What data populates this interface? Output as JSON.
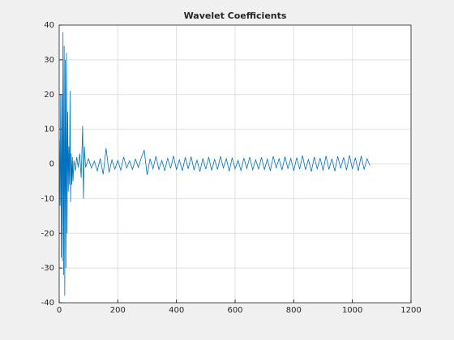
{
  "chart_data": {
    "type": "line",
    "title": "Wavelet Coefficients",
    "x": [
      1,
      3,
      5,
      7,
      9,
      11,
      13,
      15,
      17,
      19,
      21,
      23,
      25,
      27,
      29,
      31,
      33,
      35,
      37,
      39,
      41,
      43,
      45,
      47,
      50,
      55,
      60,
      65,
      70,
      75,
      80,
      83,
      86,
      90,
      100,
      110,
      120,
      130,
      140,
      150,
      160,
      170,
      180,
      190,
      200,
      210,
      220,
      230,
      240,
      250,
      260,
      270,
      280,
      290,
      300,
      310,
      320,
      330,
      340,
      350,
      360,
      370,
      380,
      390,
      400,
      410,
      420,
      430,
      440,
      450,
      460,
      470,
      480,
      490,
      500,
      510,
      520,
      530,
      540,
      550,
      560,
      570,
      580,
      590,
      600,
      610,
      620,
      630,
      640,
      650,
      660,
      670,
      680,
      690,
      700,
      710,
      720,
      730,
      740,
      750,
      760,
      770,
      780,
      790,
      800,
      810,
      820,
      830,
      840,
      850,
      860,
      870,
      880,
      890,
      900,
      910,
      920,
      930,
      940,
      950,
      960,
      970,
      980,
      990,
      1000,
      1010,
      1020,
      1030,
      1040,
      1050,
      1060
    ],
    "series": [
      {
        "color": "#0072bd",
        "values": [
          7,
          -12,
          20,
          -27,
          20,
          -28,
          38,
          -32,
          34,
          -38,
          30,
          -30,
          32,
          -20,
          15,
          -8,
          5,
          -6,
          21,
          -11,
          3,
          -6,
          2,
          -5,
          1,
          -2,
          2,
          -1,
          3,
          -4,
          11,
          -10,
          5,
          -1,
          1.5,
          -1.2,
          0.8,
          -2,
          1.6,
          -3,
          4.5,
          -2.5,
          1.2,
          -1.5,
          1,
          -1.8,
          2,
          -1.2,
          0.9,
          -1.6,
          1.4,
          -1,
          1.8,
          4,
          -3.2,
          1.5,
          -1.4,
          2.2,
          -1.6,
          1,
          -2,
          1.7,
          -1.3,
          2.3,
          -1.7,
          1.2,
          -2,
          1.9,
          -1.4,
          2.1,
          -1.8,
          1.1,
          -2.2,
          1.6,
          -1.5,
          2,
          -1.9,
          1.3,
          -1.6,
          2.2,
          -1.2,
          1.5,
          -2.1,
          1.8,
          -1.4,
          1,
          -1.9,
          1.7,
          -1.3,
          2,
          -1.7,
          1.2,
          -1.5,
          1.9,
          -1.6,
          1.4,
          -2,
          2.2,
          -1.1,
          1.5,
          -1.8,
          2.1,
          -1.3,
          1.6,
          -2,
          1.8,
          -1.5,
          2.4,
          -1.7,
          1.3,
          -2.2,
          2,
          -1.4,
          1.7,
          -1.9,
          2.3,
          -1.6,
          1.5,
          -2.1,
          2.2,
          -1.3,
          1.9,
          -1.8,
          2.5,
          -1.5,
          1.8,
          -2,
          2.3,
          -1.6,
          1.5,
          -0.5
        ]
      }
    ],
    "xlim": [
      0,
      1200
    ],
    "xticks": [
      0,
      200,
      400,
      600,
      800,
      1000,
      1200
    ],
    "ylim": [
      -40,
      40
    ],
    "yticks": [
      -40,
      -30,
      -20,
      -10,
      0,
      10,
      20,
      30,
      40
    ],
    "grid": true
  }
}
